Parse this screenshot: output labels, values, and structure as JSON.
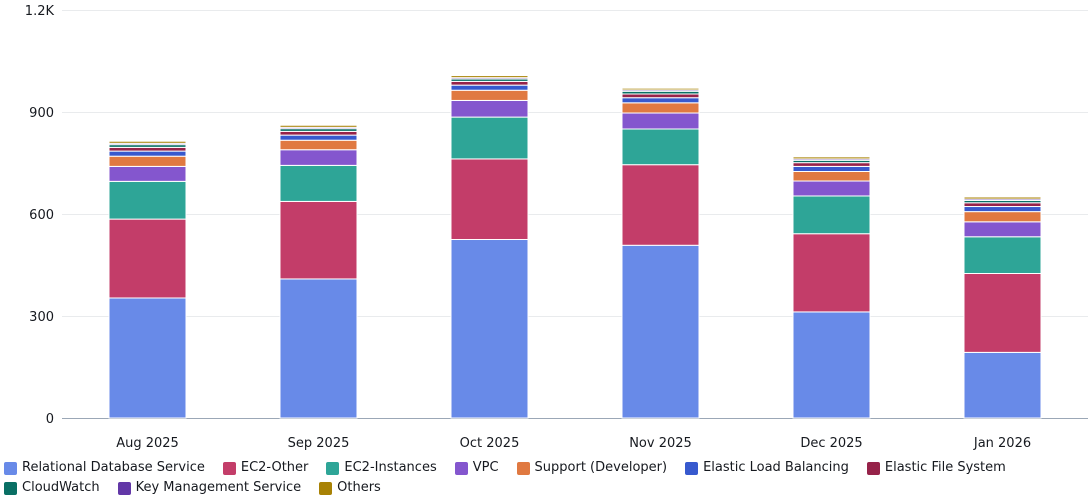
{
  "chart_data": {
    "type": "bar",
    "stacked": true,
    "categories": [
      "Aug 2025",
      "Sep 2025",
      "Oct 2025",
      "Nov 2025",
      "Dec 2025",
      "Jan 2026"
    ],
    "y_ticks": [
      {
        "value": 0,
        "label": "0"
      },
      {
        "value": 300,
        "label": "300"
      },
      {
        "value": 600,
        "label": "600"
      },
      {
        "value": 900,
        "label": "900"
      },
      {
        "value": 1200,
        "label": "1.2K"
      }
    ],
    "ylim": [
      0,
      1200
    ],
    "grid": true,
    "legend_position": "bottom",
    "series": [
      {
        "name": "Relational Database Service",
        "color": "#688ae8",
        "values": [
          353,
          409,
          525,
          508,
          312,
          193
        ]
      },
      {
        "name": "EC2-Other",
        "color": "#c33d69",
        "values": [
          232,
          228,
          237,
          237,
          230,
          232
        ]
      },
      {
        "name": "EC2-Instances",
        "color": "#2ea597",
        "values": [
          111,
          106,
          123,
          105,
          111,
          108
        ]
      },
      {
        "name": "VPC",
        "color": "#8456ce",
        "values": [
          44,
          46,
          49,
          47,
          44,
          44
        ]
      },
      {
        "name": "Support (Developer)",
        "color": "#e07941",
        "values": [
          30,
          28,
          30,
          30,
          28,
          30
        ]
      },
      {
        "name": "Elastic Load Balancing",
        "color": "#3759ce",
        "values": [
          15,
          15,
          15,
          15,
          15,
          15
        ]
      },
      {
        "name": "Elastic File System",
        "color": "#962249",
        "values": [
          11,
          11,
          11,
          11,
          11,
          11
        ]
      },
      {
        "name": "CloudWatch",
        "color": "#096f64",
        "values": [
          8,
          8,
          7,
          8,
          7,
          7
        ]
      },
      {
        "name": "Key Management Service",
        "color": "#6237a7",
        "values": [
          4,
          4,
          4,
          4,
          4,
          4
        ]
      },
      {
        "name": "Others",
        "color": "#a88205",
        "values": [
          6,
          6,
          6,
          5,
          6,
          6
        ]
      }
    ]
  }
}
